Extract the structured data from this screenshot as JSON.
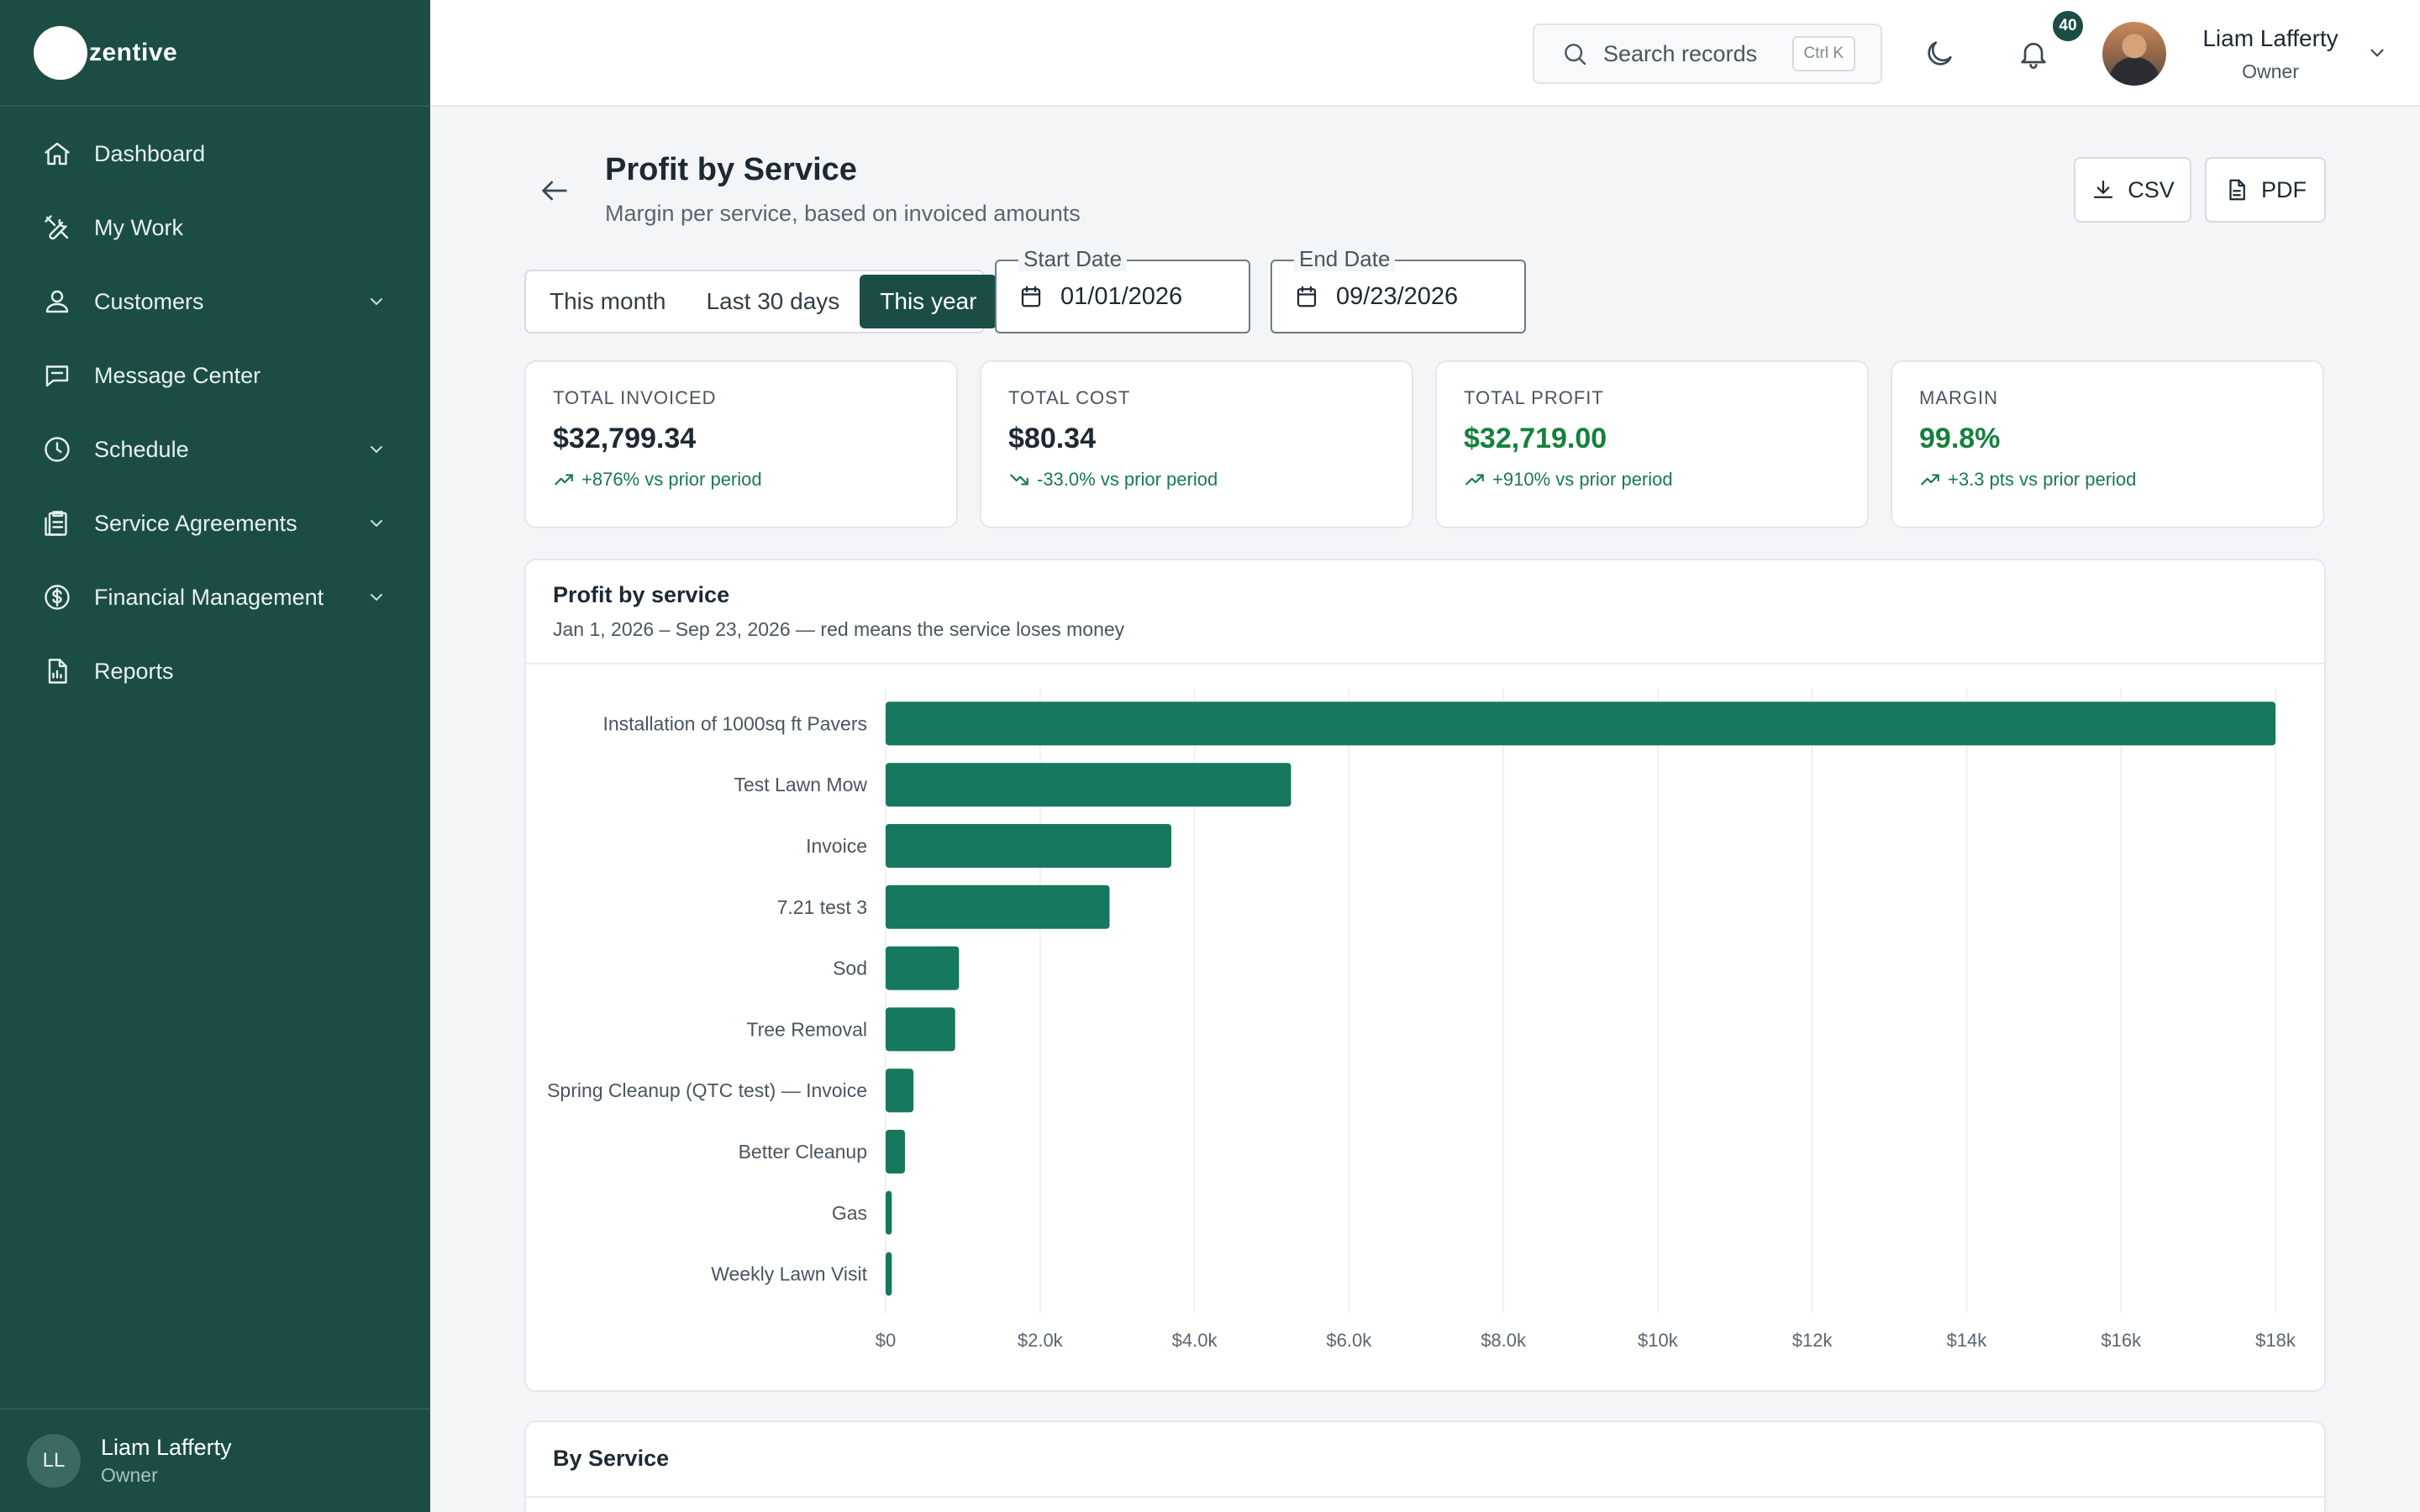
{
  "brand": {
    "name": "zentive"
  },
  "sidebar": {
    "items": [
      {
        "label": "Dashboard",
        "icon": "home-icon",
        "expandable": false
      },
      {
        "label": "My Work",
        "icon": "tools-icon",
        "expandable": false
      },
      {
        "label": "Customers",
        "icon": "users-icon",
        "expandable": true
      },
      {
        "label": "Message Center",
        "icon": "chat-icon",
        "expandable": false
      },
      {
        "label": "Schedule",
        "icon": "clock-icon",
        "expandable": true
      },
      {
        "label": "Service Agreements",
        "icon": "clipboard-icon",
        "expandable": true
      },
      {
        "label": "Financial Management",
        "icon": "dollar-icon",
        "expandable": true
      },
      {
        "label": "Reports",
        "icon": "report-icon",
        "expandable": false
      }
    ],
    "user": {
      "initials": "LL",
      "name": "Liam Lafferty",
      "role": "Owner"
    }
  },
  "topbar": {
    "search_placeholder": "Search records",
    "search_shortcut": "Ctrl K",
    "notification_count": "40",
    "user": {
      "name": "Liam Lafferty",
      "role": "Owner"
    }
  },
  "page": {
    "title": "Profit by Service",
    "subtitle": "Margin per service, based on invoiced amounts",
    "export_csv": "CSV",
    "export_pdf": "PDF"
  },
  "period": {
    "options": [
      "This month",
      "Last 30 days",
      "This year"
    ],
    "selected": "This year"
  },
  "dates": {
    "start_label": "Start Date",
    "start_value": "01/01/2026",
    "end_label": "End Date",
    "end_value": "09/23/2026"
  },
  "stats": [
    {
      "label": "TOTAL INVOICED",
      "value": "$32,799.34",
      "trend": "+876% vs prior period",
      "direction": "up",
      "value_color": "default"
    },
    {
      "label": "TOTAL COST",
      "value": "$80.34",
      "trend": "-33.0% vs prior period",
      "direction": "down",
      "value_color": "default"
    },
    {
      "label": "TOTAL PROFIT",
      "value": "$32,719.00",
      "trend": "+910% vs prior period",
      "direction": "up",
      "value_color": "green"
    },
    {
      "label": "MARGIN",
      "value": "99.8%",
      "trend": "+3.3 pts vs prior period",
      "direction": "up",
      "value_color": "green"
    }
  ],
  "chart_card": {
    "title": "Profit by service",
    "subtitle": "Jan 1, 2026 – Sep 23, 2026 — red means the service loses money"
  },
  "chart_data": {
    "type": "bar",
    "orientation": "horizontal",
    "categories": [
      "Installation of 1000sq ft Pavers",
      "Test Lawn Mow",
      "Invoice",
      "7.21 test 3",
      "Sod",
      "Tree Removal",
      "Spring Cleanup (QTC test) — Invoice",
      "Better Cleanup",
      "Gas",
      "Weekly Lawn Visit"
    ],
    "values": [
      18000,
      5250,
      3700,
      2900,
      950,
      900,
      360,
      250,
      80,
      80
    ],
    "x_ticks": [
      "$0",
      "$2.0k",
      "$4.0k",
      "$6.0k",
      "$8.0k",
      "$10k",
      "$12k",
      "$14k",
      "$16k",
      "$18k"
    ],
    "xlim": [
      0,
      18000
    ],
    "grid": true,
    "bar_color": "#16785e",
    "negative_color": "#dc2626"
  },
  "table_card": {
    "title": "By Service"
  },
  "colors": {
    "sidebar": "#1b4d45",
    "accent": "#1b4d45",
    "positive": "#15803d",
    "bar": "#16785e"
  }
}
